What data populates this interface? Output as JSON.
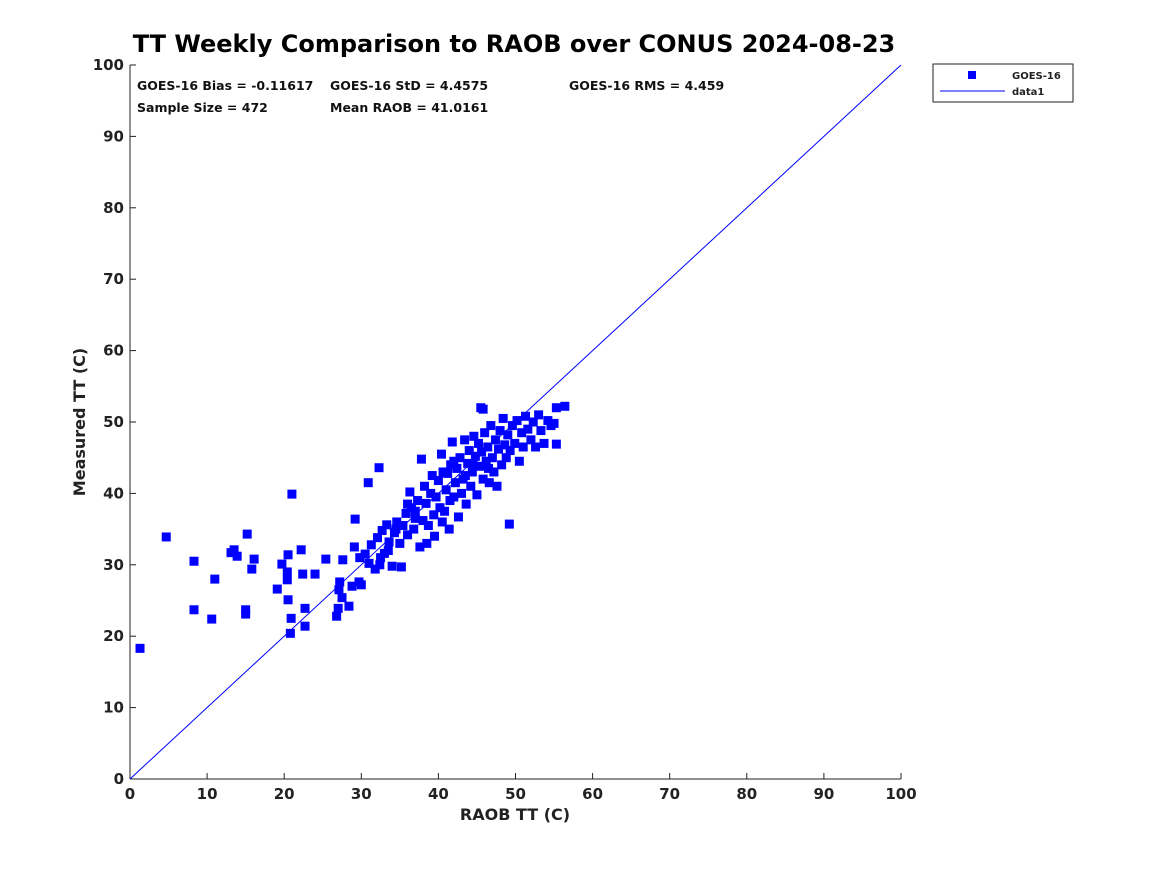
{
  "chart_data": {
    "type": "scatter",
    "title": "TT Weekly Comparison to RAOB over CONUS 2024-08-23",
    "xlabel": "RAOB TT (C)",
    "ylabel": "Measured TT (C)",
    "xlim": [
      0,
      100
    ],
    "ylim": [
      0,
      100
    ],
    "xticks": [
      "0",
      "10",
      "20",
      "30",
      "40",
      "50",
      "60",
      "70",
      "80",
      "90",
      "100"
    ],
    "yticks": [
      "0",
      "10",
      "20",
      "30",
      "40",
      "50",
      "60",
      "70",
      "80",
      "90",
      "100"
    ],
    "grid": false,
    "legend_placement": "outside-top-right",
    "legend": [
      "GOES-16",
      "data1"
    ],
    "stats": [
      "GOES-16 Bias = -0.11617",
      "GOES-16 StD = 4.4575",
      "GOES-16 RMS = 4.459",
      "Sample Size = 472",
      "Mean RAOB = 41.0161"
    ],
    "colors": {
      "points": "#0000ff",
      "line": "#0000ff"
    },
    "line": {
      "name": "data1",
      "x": [
        0,
        100
      ],
      "y": [
        0,
        100
      ]
    },
    "series": [
      {
        "name": "GOES-16",
        "points": [
          [
            1.3,
            18.3
          ],
          [
            4.7,
            33.9
          ],
          [
            8.3,
            30.5
          ],
          [
            8.3,
            23.7
          ],
          [
            10.6,
            22.4
          ],
          [
            11.0,
            28.0
          ],
          [
            13.1,
            31.7
          ],
          [
            13.5,
            32.1
          ],
          [
            13.9,
            31.2
          ],
          [
            15.2,
            34.3
          ],
          [
            15.0,
            23.7
          ],
          [
            15.0,
            23.1
          ],
          [
            15.8,
            29.4
          ],
          [
            16.1,
            30.8
          ],
          [
            19.1,
            26.6
          ],
          [
            19.7,
            30.1
          ],
          [
            20.4,
            29.0
          ],
          [
            20.4,
            27.9
          ],
          [
            20.5,
            31.4
          ],
          [
            20.5,
            25.1
          ],
          [
            21.0,
            39.9
          ],
          [
            20.9,
            22.5
          ],
          [
            20.8,
            20.4
          ],
          [
            22.2,
            32.1
          ],
          [
            22.4,
            28.7
          ],
          [
            22.7,
            23.9
          ],
          [
            22.7,
            21.4
          ],
          [
            24.0,
            28.7
          ],
          [
            25.4,
            30.8
          ],
          [
            26.8,
            22.8
          ],
          [
            27.0,
            23.9
          ],
          [
            27.1,
            26.5
          ],
          [
            27.2,
            27.6
          ],
          [
            27.5,
            25.4
          ],
          [
            28.4,
            24.2
          ],
          [
            27.6,
            30.7
          ],
          [
            28.8,
            27.0
          ],
          [
            29.2,
            36.4
          ],
          [
            29.1,
            32.5
          ],
          [
            29.7,
            27.6
          ],
          [
            30.0,
            27.2
          ],
          [
            30.9,
            41.5
          ],
          [
            32.3,
            43.6
          ],
          [
            49.2,
            35.7
          ],
          [
            55.3,
            46.9
          ],
          [
            56.4,
            52.2
          ],
          [
            55.3,
            52.0
          ],
          [
            45.5,
            52.0
          ],
          [
            45.8,
            51.8
          ],
          [
            29.8,
            31.0
          ],
          [
            30.5,
            31.5
          ],
          [
            31.0,
            30.2
          ],
          [
            31.3,
            32.8
          ],
          [
            31.8,
            29.4
          ],
          [
            32.1,
            33.8
          ],
          [
            32.4,
            30.0
          ],
          [
            32.7,
            34.8
          ],
          [
            33.0,
            31.6
          ],
          [
            33.3,
            35.6
          ],
          [
            33.6,
            33.2
          ],
          [
            34.0,
            29.8
          ],
          [
            34.3,
            34.5
          ],
          [
            34.6,
            36.0
          ],
          [
            35.0,
            33.0
          ],
          [
            35.2,
            29.7
          ],
          [
            35.4,
            35.5
          ],
          [
            35.8,
            37.2
          ],
          [
            36.0,
            34.2
          ],
          [
            36.3,
            40.2
          ],
          [
            36.5,
            38.0
          ],
          [
            36.8,
            35.0
          ],
          [
            37.0,
            37.5
          ],
          [
            37.3,
            39.0
          ],
          [
            37.6,
            32.5
          ],
          [
            37.8,
            44.8
          ],
          [
            38.0,
            36.2
          ],
          [
            38.2,
            41.0
          ],
          [
            38.4,
            38.6
          ],
          [
            38.7,
            35.5
          ],
          [
            39.0,
            40.0
          ],
          [
            39.2,
            42.5
          ],
          [
            39.4,
            37.0
          ],
          [
            39.7,
            39.5
          ],
          [
            40.0,
            41.8
          ],
          [
            40.2,
            38.0
          ],
          [
            40.4,
            45.5
          ],
          [
            40.6,
            43.0
          ],
          [
            40.8,
            37.5
          ],
          [
            41.0,
            40.5
          ],
          [
            41.2,
            42.8
          ],
          [
            41.4,
            35.0
          ],
          [
            41.6,
            44.0
          ],
          [
            41.8,
            47.2
          ],
          [
            42.0,
            39.5
          ],
          [
            42.2,
            41.5
          ],
          [
            42.4,
            43.5
          ],
          [
            42.6,
            36.7
          ],
          [
            42.8,
            45.0
          ],
          [
            43.0,
            40.0
          ],
          [
            43.2,
            42.0
          ],
          [
            43.4,
            47.5
          ],
          [
            43.6,
            38.5
          ],
          [
            43.8,
            44.2
          ],
          [
            44.0,
            46.0
          ],
          [
            44.2,
            41.0
          ],
          [
            44.4,
            43.0
          ],
          [
            44.6,
            48.0
          ],
          [
            44.8,
            45.2
          ],
          [
            45.0,
            39.8
          ],
          [
            45.2,
            47.0
          ],
          [
            45.4,
            43.8
          ],
          [
            45.6,
            45.8
          ],
          [
            45.8,
            42.0
          ],
          [
            46.0,
            48.5
          ],
          [
            46.2,
            44.5
          ],
          [
            46.4,
            46.5
          ],
          [
            46.6,
            41.5
          ],
          [
            46.8,
            49.5
          ],
          [
            47.0,
            45.0
          ],
          [
            47.2,
            43.0
          ],
          [
            47.4,
            47.5
          ],
          [
            47.6,
            41.0
          ],
          [
            47.8,
            46.2
          ],
          [
            48.0,
            48.8
          ],
          [
            48.2,
            44.0
          ],
          [
            48.4,
            50.5
          ],
          [
            48.6,
            46.8
          ],
          [
            48.8,
            45.0
          ],
          [
            49.0,
            48.2
          ],
          [
            49.3,
            46.0
          ],
          [
            49.6,
            49.5
          ],
          [
            49.9,
            47.0
          ],
          [
            50.2,
            50.2
          ],
          [
            50.5,
            44.5
          ],
          [
            50.8,
            48.5
          ],
          [
            51.0,
            46.5
          ],
          [
            51.3,
            50.8
          ],
          [
            51.6,
            49.0
          ],
          [
            52.0,
            47.5
          ],
          [
            52.3,
            50.0
          ],
          [
            52.6,
            46.5
          ],
          [
            53.0,
            51.0
          ],
          [
            53.3,
            48.8
          ],
          [
            53.7,
            47.0
          ],
          [
            54.2,
            50.2
          ],
          [
            54.6,
            49.5
          ],
          [
            55.0,
            49.8
          ],
          [
            38.5,
            33.0
          ],
          [
            39.5,
            34.0
          ],
          [
            40.5,
            36.0
          ],
          [
            43.5,
            42.5
          ],
          [
            44.5,
            44.0
          ],
          [
            46.5,
            43.5
          ],
          [
            42.0,
            44.5
          ],
          [
            41.5,
            39.0
          ],
          [
            37.0,
            36.5
          ],
          [
            36.0,
            38.5
          ],
          [
            34.5,
            35.0
          ],
          [
            33.5,
            32.0
          ],
          [
            32.5,
            31.0
          ]
        ]
      }
    ]
  }
}
